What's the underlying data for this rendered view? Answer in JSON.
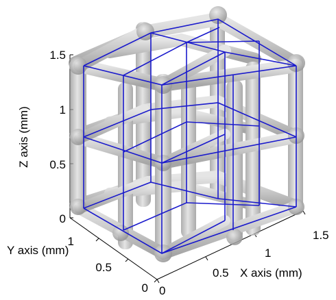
{
  "figure": {
    "z_axis": {
      "label": "Z axis (mm)",
      "ticks": [
        "0",
        "0.5",
        "1",
        "1.5"
      ]
    },
    "y_axis": {
      "label": "Y axis (mm)",
      "ticks": [
        "0",
        "0.5",
        "1"
      ]
    },
    "x_axis": {
      "label": "X axis (mm)",
      "ticks": [
        "0",
        "0.5",
        "1",
        "1.5"
      ]
    },
    "colors": {
      "strut": "#9a9a9a",
      "strut_highlight": "#d4d4d4",
      "wireframe": "#1a1acc",
      "axes": "#000000"
    }
  }
}
